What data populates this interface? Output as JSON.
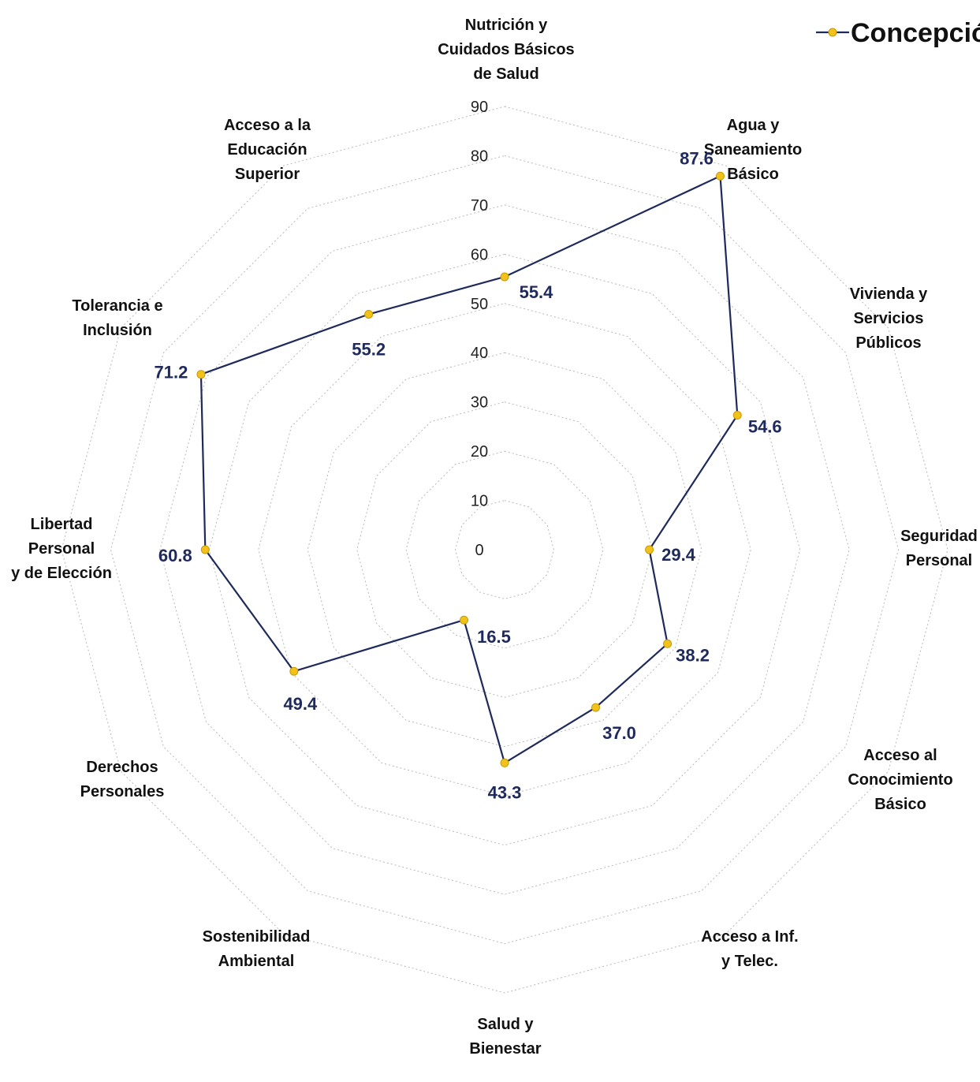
{
  "chart_data": {
    "type": "radar",
    "categories": [
      [
        "Nutrición y",
        "Cuidados Básicos",
        "de Salud"
      ],
      [
        "Agua y",
        "Saneamiento",
        "Básico"
      ],
      [
        "Vivienda y",
        "Servicios",
        "Públicos"
      ],
      [
        "Seguridad",
        "Personal"
      ],
      [
        "Acceso al",
        "Conocimiento",
        "Básico"
      ],
      [
        "Acceso a Inf.",
        "y Telec."
      ],
      [
        "Salud y",
        "Bienestar"
      ],
      [
        "Sostenibilidad",
        "Ambiental"
      ],
      [
        "Derechos",
        "Personales"
      ],
      [
        "Libertad",
        "Personal",
        "y de Elección"
      ],
      [
        "Tolerancia e",
        "Inclusión"
      ],
      [
        "Acceso a la",
        "Educación",
        "Superior"
      ]
    ],
    "series": [
      {
        "name": "Concepción",
        "values": [
          55.4,
          87.6,
          54.6,
          29.4,
          38.2,
          37.0,
          43.3,
          16.5,
          49.4,
          60.8,
          71.2,
          55.2
        ],
        "labels": [
          "55.4",
          "87.6",
          "54.6",
          "29.4",
          "38.2",
          "37.0",
          "43.3",
          "16.5",
          "49.4",
          "60.8",
          "71.2",
          "55.2"
        ]
      }
    ],
    "radial_ticks": [
      "0",
      "10",
      "20",
      "30",
      "40",
      "50",
      "60",
      "70",
      "80",
      "90"
    ],
    "rlim": [
      0,
      90
    ],
    "grid": true,
    "legend_position": "top-right",
    "colors": {
      "line": "#1f2a5c",
      "marker": "#f2c21b",
      "marker_edge": "#c89a00",
      "data_label": "#1f2a5c",
      "grid": "#b9b9b9"
    }
  }
}
